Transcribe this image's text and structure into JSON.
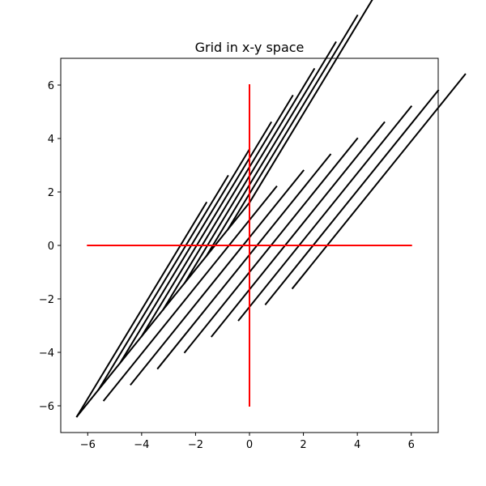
{
  "chart_data": {
    "type": "line",
    "title": "Grid in x-y space",
    "xlabel": "",
    "ylabel": "",
    "xlim": [
      -7,
      7
    ],
    "ylim": [
      -7,
      7
    ],
    "grid": false,
    "x_ticks": [
      -6,
      -4,
      -2,
      0,
      2,
      4,
      6
    ],
    "x_tick_labels": [
      "−6",
      "−4",
      "−2",
      "0",
      "2",
      "4",
      "6"
    ],
    "y_ticks": [
      -6,
      -4,
      -2,
      0,
      2,
      4,
      6
    ],
    "y_tick_labels": [
      "−6",
      "−4",
      "−2",
      "0",
      "2",
      "4",
      "6"
    ],
    "grid_color": "#000000",
    "axes_color": "#ff0000",
    "grid_line_families": [
      {
        "name": "",
        "lines": [
          [
            [
              -6.4,
              -6.4
            ],
            [
              -1.6,
              1.6
            ]
          ],
          [
            [
              -5.6,
              -5.4
            ],
            [
              -0.8,
              2.6
            ]
          ],
          [
            [
              -4.8,
              -4.4
            ],
            [
              0.0,
              3.6
            ]
          ],
          [
            [
              -4.0,
              -3.4
            ],
            [
              0.8,
              4.6
            ]
          ],
          [
            [
              -3.2,
              -2.4
            ],
            [
              1.6,
              5.6
            ]
          ],
          [
            [
              -2.4,
              -1.4
            ],
            [
              2.4,
              6.6
            ]
          ],
          [
            [
              -1.6,
              -0.4
            ],
            [
              3.2,
              7.6
            ]
          ],
          [
            [
              -0.8,
              0.6
            ],
            [
              4.0,
              8.6
            ]
          ],
          [
            [
              0.0,
              1.6
            ],
            [
              4.8,
              9.6
            ]
          ]
        ]
      },
      {
        "name": "",
        "lines": [
          [
            [
              -6.4,
              -6.4
            ],
            [
              0.0,
              1.6
            ]
          ],
          [
            [
              -5.4,
              -5.8
            ],
            [
              1.0,
              2.2
            ]
          ],
          [
            [
              -4.4,
              -5.2
            ],
            [
              2.0,
              2.8
            ]
          ],
          [
            [
              -3.4,
              -4.6
            ],
            [
              3.0,
              3.4
            ]
          ],
          [
            [
              -2.4,
              -4.0
            ],
            [
              4.0,
              4.0
            ]
          ],
          [
            [
              -1.4,
              -3.4
            ],
            [
              5.0,
              4.6
            ]
          ],
          [
            [
              -0.4,
              -2.8
            ],
            [
              6.0,
              5.2
            ]
          ],
          [
            [
              0.6,
              -2.2
            ],
            [
              7.0,
              5.8
            ]
          ],
          [
            [
              1.6,
              -1.6
            ],
            [
              8.0,
              6.4
            ]
          ]
        ]
      }
    ],
    "axis_lines": [
      [
        [
          -6,
          0
        ],
        [
          6,
          0
        ]
      ],
      [
        [
          0,
          -6
        ],
        [
          0,
          6
        ]
      ]
    ]
  }
}
